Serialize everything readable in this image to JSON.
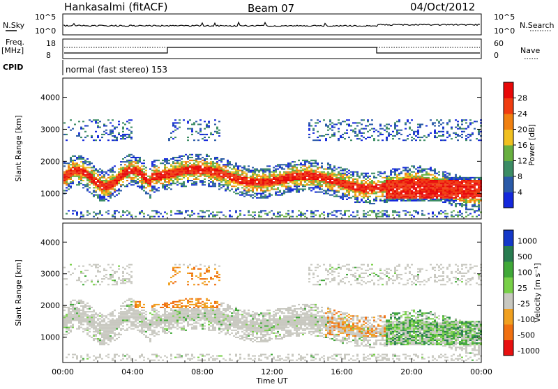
{
  "header": {
    "station": "Hankasalmi (fitACF)",
    "beam": "Beam 07",
    "date": "04/Oct/2012"
  },
  "top_panels": {
    "nsky_label": "N.Sky",
    "nsearch_label": "N.Search",
    "noise_ticks": [
      "10^5",
      "10^0"
    ],
    "freq_label_1": "Freq.",
    "freq_label_2": "[MHz]",
    "freq_ticks": [
      "18",
      "8"
    ],
    "nave_label": "Nave",
    "nave_ticks": [
      "60",
      "0"
    ],
    "cpid_label": "CPID",
    "cpid_text": "normal (fast stereo) 153"
  },
  "chart_data": [
    {
      "type": "heatmap",
      "name": "power",
      "ylabel": "Slant Range [km]",
      "colorbar_label": "Power [dB]",
      "ylim": [
        200,
        4600
      ],
      "yticks": [
        1000,
        2000,
        3000,
        4000
      ],
      "colorbar_ticks": [
        4,
        8,
        12,
        16,
        20,
        24,
        28
      ],
      "colorbar_range": [
        0,
        32
      ],
      "colors": [
        "#1428dc",
        "#2a5aa8",
        "#3c8c64",
        "#68b040",
        "#f0c020",
        "#f08010",
        "#f03c10",
        "#e80808"
      ]
    },
    {
      "type": "heatmap",
      "name": "velocity",
      "ylabel": "Slant Range [km]",
      "colorbar_label": "Velocity [m s⁻¹]",
      "xlabel": "Time UT",
      "ylim": [
        200,
        4600
      ],
      "yticks": [
        1000,
        2000,
        3000,
        4000
      ],
      "colorbar_ticks": [
        "1000",
        "500",
        "100",
        "25",
        "-25",
        "-100",
        "-500",
        "-1000"
      ],
      "colors": [
        "#1438c8",
        "#287c50",
        "#40a838",
        "#78d048",
        "#c8c8c0",
        "#f0a020",
        "#f07010",
        "#e81010"
      ],
      "xticks": [
        "00:00",
        "04:00",
        "08:00",
        "12:00",
        "16:00",
        "20:00",
        "00:00"
      ],
      "xlim_hours": [
        0,
        24
      ]
    }
  ]
}
